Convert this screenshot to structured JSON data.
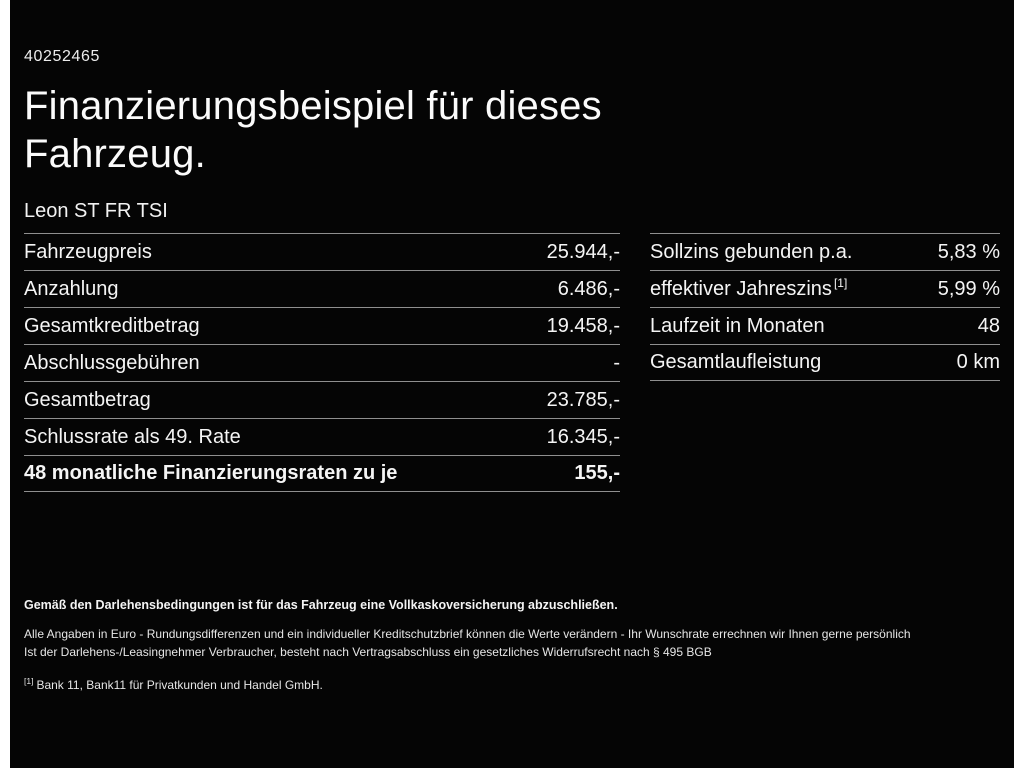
{
  "page": {
    "id_number": "40252465",
    "title_line1": "Finanzierungsbeispiel für dieses",
    "title_line2": "Fahrzeug.",
    "vehicle_name": "Leon ST FR TSI"
  },
  "left_table": {
    "rows": [
      {
        "label": "Fahrzeugpreis",
        "value": "25.944,-"
      },
      {
        "label": "Anzahlung",
        "value": "6.486,-"
      },
      {
        "label": "Gesamtkreditbetrag",
        "value": "19.458,-"
      },
      {
        "label": "Abschlussgebühren",
        "value": "-"
      },
      {
        "label": "Gesamtbetrag",
        "value": "23.785,-"
      },
      {
        "label": "Schlussrate als 49. Rate",
        "value": "16.345,-"
      },
      {
        "label": "48 monatliche Finanzierungsraten zu je",
        "value": "155,-"
      }
    ]
  },
  "right_table": {
    "rows": [
      {
        "label": "Sollzins gebunden p.a.",
        "value": "5,83 %"
      },
      {
        "label": "effektiver Jahreszins",
        "sup": "[1]",
        "value": "5,99 %"
      },
      {
        "label": "Laufzeit in Monaten",
        "value": "48"
      },
      {
        "label": "Gesamtlaufleistung",
        "value": "0 km"
      }
    ]
  },
  "footer": {
    "line1": "Gemäß den Darlehensbedingungen ist für das Fahrzeug eine Vollkaskoversicherung abzuschließen.",
    "line2": "Alle Angaben in Euro - Rundungsdifferenzen und ein individueller Kreditschutzbrief können die Werte verändern - Ihr Wunschrate errechnen wir Ihnen gerne persönlich",
    "line3": "Ist der Darlehens-/Leasingnehmer Verbraucher, besteht nach Vertragsabschluss ein gesetzliches Widerrufsrecht nach § 495 BGB",
    "footnote_marker": "[1]",
    "footnote_text": "Bank 11, Bank11 für Privatkunden und Handel GmbH.",
    "colors": {
      "background": "#050505",
      "text": "#f5f5f5",
      "divider": "#8f8f8f"
    }
  }
}
